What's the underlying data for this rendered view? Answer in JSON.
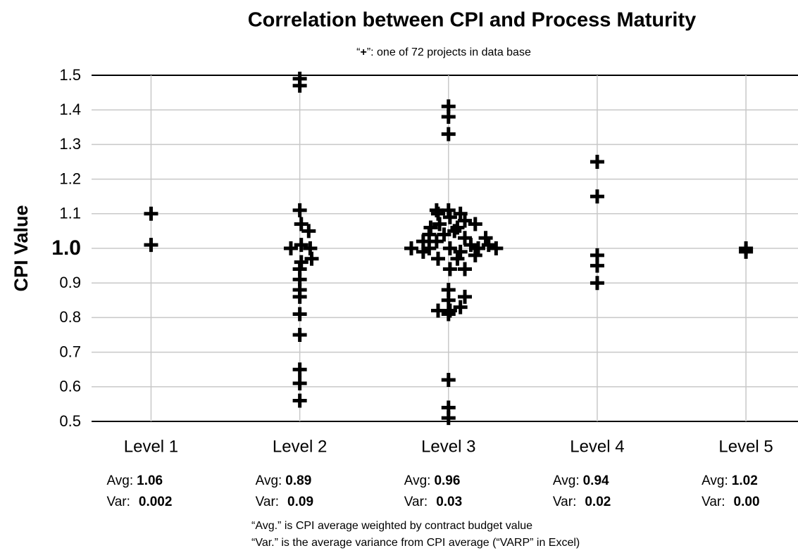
{
  "chart_data": {
    "type": "scatter",
    "title": "Correlation between CPI and Process Maturity",
    "subtitle": [
      "“",
      "+",
      "”: one of 72 projects in data base"
    ],
    "y_label": "CPI Value",
    "color": "#000000",
    "grid": true,
    "xlim": [
      0.6,
      5.35
    ],
    "xticks": [
      {
        "value": 1,
        "label": "Level 1"
      },
      {
        "value": 2,
        "label": "Level 2"
      },
      {
        "value": 3,
        "label": "Level 3"
      },
      {
        "value": 4,
        "label": "Level 4"
      },
      {
        "value": 5,
        "label": "Level 5"
      }
    ],
    "ylim": [
      0.5,
      1.5
    ],
    "yticks": [
      0.5,
      0.6,
      0.7,
      0.8,
      0.9,
      {
        "value": 1,
        "label": "1.0"
      },
      1.1,
      1.2,
      1.3,
      1.4,
      1.5
    ],
    "x": [
      1,
      1,
      2,
      2,
      2,
      2.01,
      2.06,
      2.01,
      1.94,
      2.07,
      2.08,
      2.01,
      2,
      2,
      2,
      2,
      2,
      2,
      2,
      2,
      2,
      3,
      3,
      3,
      3,
      3,
      3,
      3,
      3,
      3.11,
      2.93,
      3.01,
      3.08,
      3,
      3.01,
      3.11,
      2.93,
      3.06,
      3.18,
      2.83,
      2.75,
      2.87,
      3.01,
      3.2,
      3.32,
      3.27,
      2.83,
      2.92,
      3.11,
      3.25,
      2.97,
      3.04,
      2.88,
      3.06,
      3.18,
      2.94,
      3.11,
      3.01,
      2.93,
      3.08,
      3,
      2.92,
      3.08,
      2.87,
      3.15,
      4,
      4,
      4,
      4,
      4,
      5,
      5
    ],
    "y": [
      1.1,
      1.01,
      1.49,
      1.47,
      1.11,
      1.07,
      1.05,
      1.01,
      1.0,
      1.0,
      0.97,
      0.96,
      0.94,
      0.91,
      0.88,
      0.86,
      0.81,
      0.75,
      0.65,
      0.61,
      0.56,
      1.41,
      1.38,
      1.33,
      0.62,
      0.54,
      0.51,
      0.88,
      0.85,
      0.86,
      0.82,
      0.82,
      0.83,
      0.81,
      0.94,
      0.94,
      0.97,
      0.97,
      0.98,
      0.99,
      1.0,
      1.0,
      1.0,
      1.0,
      1.0,
      1.01,
      1.02,
      1.02,
      1.03,
      1.03,
      1.04,
      1.05,
      1.06,
      1.06,
      1.07,
      1.07,
      1.08,
      1.09,
      1.1,
      1.1,
      1.11,
      1.11,
      0.99,
      1.04,
      1.01,
      1.25,
      1.15,
      0.98,
      0.95,
      0.9,
      1.0,
      0.99
    ],
    "avg_label": "Avg:",
    "var_label": "Var:",
    "stats": [
      {
        "avg": "1.06",
        "var": "0.002"
      },
      {
        "avg": "0.89",
        "var": "0.09"
      },
      {
        "avg": "0.96",
        "var": "0.03"
      },
      {
        "avg": "0.94",
        "var": "0.02"
      },
      {
        "avg": "1.02",
        "var": "0.00"
      }
    ],
    "footnotes": [
      "“Avg.” is CPI average weighted by contract budget value",
      "“Var.” is the average variance from CPI average (“VARP” in Excel)"
    ]
  }
}
